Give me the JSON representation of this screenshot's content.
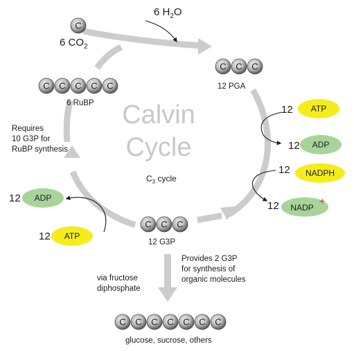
{
  "title_line1": "Calvin",
  "title_line2": "Cycle",
  "subtitle": "C",
  "subtitle_sub": "3",
  "subtitle_rest": " cycle",
  "atom": "C",
  "co2_coef": "6 CO",
  "co2_sub": "2",
  "water_coef": "6 H",
  "water_sub": "2",
  "water_rest": "O",
  "pga_label": "12 PGA",
  "rubp_label": "6 RuBP",
  "g3p_label": "12 G3P",
  "product_label": "glucose, sucrose, others",
  "requires": [
    "Requires",
    "10 G3P for",
    "RuBP synthesis"
  ],
  "provides": [
    "Provides 2 G3P",
    "for synthesis of",
    "organic molecules"
  ],
  "via": [
    "via fructose",
    "diphosphate"
  ],
  "right_atp_num": "12",
  "right_atp": "ATP",
  "right_adp_num": "12",
  "right_adp": "ADP",
  "nadph_num": "12",
  "nadph": "NADPH",
  "nadp_num": "12",
  "nadp": "NADP",
  "nadp_plus": "+",
  "left_adp_num": "12",
  "left_adp": "ADP",
  "left_atp_num": "12",
  "left_atp": "ATP",
  "colors": {
    "yellow": "#f5ec1c",
    "green": "#a8d49a",
    "atom_dark": "#555555",
    "atom_light": "#d8d8d8",
    "arrow": "#cccccc",
    "plus": "#e0201b"
  }
}
